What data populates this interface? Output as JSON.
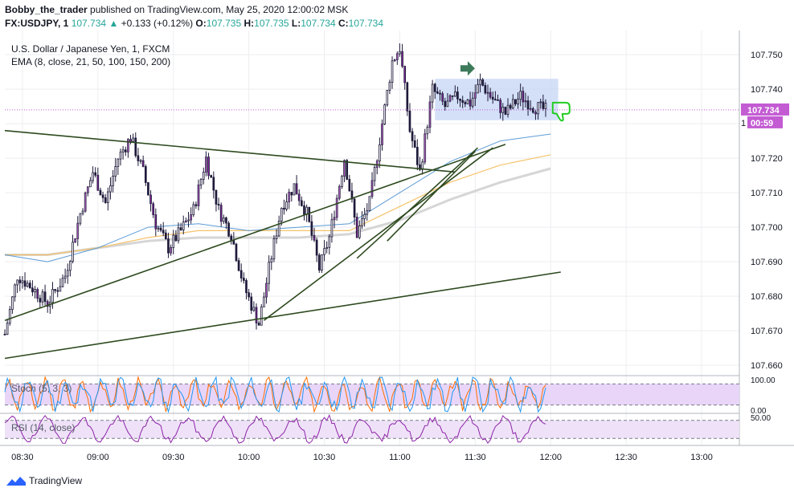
{
  "header": {
    "author": "Bobby_the_trader",
    "published": "published on TradingView.com, May 25, 2020 12:00:02 MSK",
    "symbol": "FX:USDJPY, 1",
    "last": "107.734",
    "change_icon": "triangle-up-icon",
    "change": "+0.133 (+0.12%)",
    "open_label": "O:",
    "open": "107.735",
    "high_label": "H:",
    "high": "107.735",
    "low_label": "L:",
    "low": "107.734",
    "close_label": "C:",
    "close": "107.734"
  },
  "legend": {
    "instrument": "U.S. Dollar / Japanese Yen, 1, FXCM",
    "ema": "EMA (8, close, 21, 50, 100, 150, 200)"
  },
  "badges": {
    "price": "107.734",
    "countdown": "00:59",
    "hidden_digit": "1"
  },
  "indicators": {
    "stoch": {
      "label": "Stoch (5, 3, 3)",
      "ticks": [
        "100.00",
        "0.00"
      ]
    },
    "rsi": {
      "label": "RSI (14, close)",
      "ticks": [
        "50.00"
      ]
    }
  },
  "footer": {
    "brand": "TradingView",
    "logo": "tradingview-logo-icon"
  },
  "colors": {
    "candle_body": "#1e1a3a",
    "candle_accent": "#9c27b0",
    "trendline": "#2e4a1f",
    "ema_fast": "#5c9bd6",
    "ema_mid": "#f5c36b",
    "ema_slow": "#d6d6d6",
    "price_badge": "#c35bd3",
    "range_box": "#c5d6f5",
    "arrow_green": "#3d7a5a",
    "thumbs_green": "#22cc22",
    "stoch_k": "#2196f3",
    "stoch_d": "#ff6d00",
    "stoch_fill": "#e8d5f8",
    "rsi_line": "#8e24aa",
    "rsi_fill": "#efe2f8"
  },
  "chart_data": {
    "type": "line",
    "title": "U.S. Dollar / Japanese Yen, 1, FXCM",
    "ylim": [
      107.657,
      107.757
    ],
    "y_ticks": [
      107.66,
      107.67,
      107.68,
      107.69,
      107.7,
      107.71,
      107.72,
      107.73,
      107.74,
      107.75
    ],
    "x_ticks": [
      "08:30",
      "09:00",
      "09:30",
      "10:00",
      "10:30",
      "11:00",
      "11:30",
      "12:00",
      "12:30",
      "13:00"
    ],
    "x_range": [
      "08:23",
      "13:15"
    ],
    "grid": true,
    "last_price": 107.734,
    "price_anchors": [
      [
        "08:23",
        107.669
      ],
      [
        "08:28",
        107.686
      ],
      [
        "08:33",
        107.683
      ],
      [
        "08:40",
        107.678
      ],
      [
        "08:47",
        107.686
      ],
      [
        "08:53",
        107.704
      ],
      [
        "08:58",
        107.716
      ],
      [
        "09:03",
        107.707
      ],
      [
        "09:08",
        107.72
      ],
      [
        "09:13",
        107.726
      ],
      [
        "09:18",
        107.716
      ],
      [
        "09:23",
        107.701
      ],
      [
        "09:28",
        107.694
      ],
      [
        "09:33",
        107.699
      ],
      [
        "09:38",
        107.705
      ],
      [
        "09:43",
        107.72
      ],
      [
        "09:48",
        107.705
      ],
      [
        "09:53",
        107.698
      ],
      [
        "09:58",
        107.683
      ],
      [
        "10:04",
        107.672
      ],
      [
        "10:08",
        107.688
      ],
      [
        "10:13",
        107.706
      ],
      [
        "10:18",
        107.712
      ],
      [
        "10:23",
        107.704
      ],
      [
        "10:28",
        107.688
      ],
      [
        "10:32",
        107.697
      ],
      [
        "10:38",
        107.72
      ],
      [
        "10:43",
        107.698
      ],
      [
        "10:48",
        107.707
      ],
      [
        "10:53",
        107.73
      ],
      [
        "10:57",
        107.748
      ],
      [
        "11:00",
        107.752
      ],
      [
        "11:04",
        107.728
      ],
      [
        "11:08",
        107.716
      ],
      [
        "11:13",
        107.74
      ],
      [
        "11:18",
        107.735
      ],
      [
        "11:23",
        107.738
      ],
      [
        "11:28",
        107.736
      ],
      [
        "11:32",
        107.742
      ],
      [
        "11:36",
        107.738
      ],
      [
        "11:42",
        107.733
      ],
      [
        "11:48",
        107.738
      ],
      [
        "11:53",
        107.735
      ],
      [
        "11:58",
        107.734
      ]
    ],
    "trendlines": [
      {
        "from": [
          "08:23",
          107.728
        ],
        "to": [
          "11:22",
          107.716
        ]
      },
      {
        "from": [
          "08:23",
          107.673
        ],
        "to": [
          "11:42",
          107.724
        ]
      },
      {
        "from": [
          "08:23",
          107.662
        ],
        "to": [
          "12:04",
          107.687
        ]
      },
      {
        "from": [
          "10:06",
          107.673
        ],
        "to": [
          "11:37",
          107.723
        ]
      },
      {
        "from": [
          "10:43",
          107.691
        ],
        "to": [
          "11:31",
          107.723
        ]
      },
      {
        "from": [
          "10:55",
          107.696
        ],
        "to": [
          "11:30",
          107.722
        ]
      }
    ],
    "range_box": {
      "from": "11:14",
      "to": "12:03",
      "high": 107.743,
      "low": 107.731
    },
    "ema_curves": [
      {
        "role": "fast",
        "points": [
          [
            "08:23",
            107.692
          ],
          [
            "08:40",
            107.69
          ],
          [
            "09:00",
            107.694
          ],
          [
            "09:20",
            107.7
          ],
          [
            "09:40",
            107.701
          ],
          [
            "10:00",
            107.699
          ],
          [
            "10:20",
            107.7
          ],
          [
            "10:40",
            107.701
          ],
          [
            "11:00",
            107.71
          ],
          [
            "11:20",
            107.719
          ],
          [
            "11:40",
            107.725
          ],
          [
            "12:00",
            107.727
          ]
        ]
      },
      {
        "role": "mid",
        "points": [
          [
            "08:23",
            107.692
          ],
          [
            "08:40",
            107.692
          ],
          [
            "09:00",
            107.694
          ],
          [
            "09:20",
            107.697
          ],
          [
            "09:40",
            107.699
          ],
          [
            "10:00",
            107.699
          ],
          [
            "10:20",
            107.699
          ],
          [
            "10:40",
            107.699
          ],
          [
            "11:00",
            107.706
          ],
          [
            "11:20",
            107.713
          ],
          [
            "11:40",
            107.718
          ],
          [
            "12:00",
            107.721
          ]
        ]
      },
      {
        "role": "slow",
        "points": [
          [
            "08:23",
            107.692
          ],
          [
            "08:40",
            107.692
          ],
          [
            "09:00",
            107.694
          ],
          [
            "09:20",
            107.696
          ],
          [
            "09:40",
            107.697
          ],
          [
            "10:00",
            107.697
          ],
          [
            "10:20",
            107.697
          ],
          [
            "10:40",
            107.698
          ],
          [
            "11:00",
            107.702
          ],
          [
            "11:20",
            107.708
          ],
          [
            "11:40",
            107.713
          ],
          [
            "12:00",
            107.717
          ]
        ]
      }
    ],
    "markers": [
      {
        "type": "arrow-right",
        "at": [
          "11:27",
          107.746
        ]
      },
      {
        "type": "thumbs-down",
        "at": [
          "12:04",
          107.734
        ]
      }
    ]
  }
}
